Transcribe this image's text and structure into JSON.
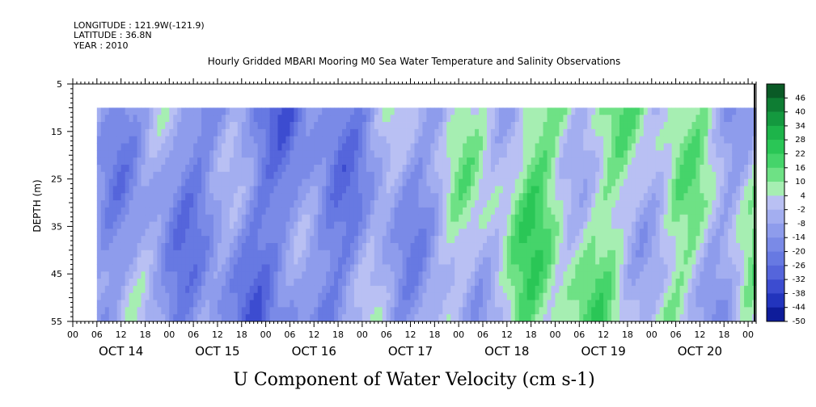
{
  "header": {
    "longitude": "LONGITUDE : 121.9W(-121.9)",
    "latitude": "LATITUDE : 36.8N",
    "year": "YEAR : 2010"
  },
  "chart_data": {
    "type": "heatmap",
    "title": "Hourly Gridded MBARI Mooring M0 Sea Water Temperature and Salinity Observations",
    "xlabel": "U Component of Water Velocity (cm s-1)",
    "ylabel": "DEPTH (m)",
    "y_ticks": [
      5,
      15,
      25,
      35,
      45,
      55
    ],
    "y_range": [
      5,
      55
    ],
    "data_depth_range": [
      10,
      55
    ],
    "x_range_hours": [
      0,
      170
    ],
    "data_time_range_hours": [
      6,
      170
    ],
    "hour_ticks": [
      "00",
      "06",
      "12",
      "18",
      "00",
      "06",
      "12",
      "18",
      "00",
      "06",
      "12",
      "18",
      "00",
      "06",
      "12",
      "18",
      "00",
      "06",
      "12",
      "18",
      "00",
      "06",
      "12",
      "18",
      "00",
      "06",
      "12",
      "18",
      "00"
    ],
    "days": [
      "OCT 14",
      "OCT 15",
      "OCT 16",
      "OCT 17",
      "OCT 18",
      "OCT 19",
      "OCT 20"
    ],
    "colorbar_labels": [
      "46",
      "40",
      "34",
      "28",
      "22",
      "16",
      "10",
      "4",
      "-2",
      "-8",
      "-14",
      "-20",
      "-26",
      "-32",
      "-38",
      "-44",
      "-50"
    ],
    "color_range": [
      -50,
      52
    ],
    "approx_time_profile": [
      {
        "hour": 6,
        "value": -8
      },
      {
        "hour": 18,
        "value": -11
      },
      {
        "hour": 30,
        "value": -13
      },
      {
        "hour": 42,
        "value": -16
      },
      {
        "hour": 54,
        "value": -19
      },
      {
        "hour": 66,
        "value": -14
      },
      {
        "hour": 78,
        "value": -9
      },
      {
        "hour": 90,
        "value": -5
      },
      {
        "hour": 102,
        "value": 2
      },
      {
        "hour": 114,
        "value": 10
      },
      {
        "hour": 126,
        "value": 7
      },
      {
        "hour": 138,
        "value": 3
      },
      {
        "hour": 150,
        "value": 4
      },
      {
        "hour": 162,
        "value": -2
      },
      {
        "hour": 170,
        "value": 1
      }
    ]
  }
}
